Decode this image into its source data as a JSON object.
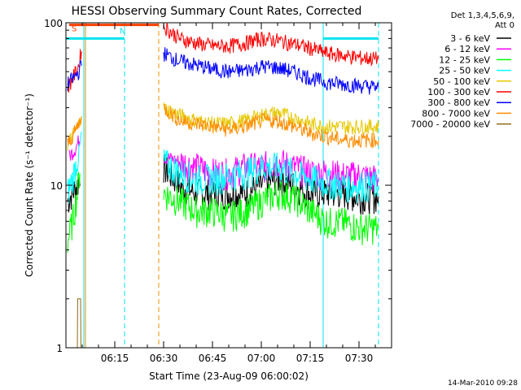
{
  "chart_data": {
    "type": "line",
    "title": "HESSI Observing Summary Count Rates, Corrected",
    "xlabel": "Start Time (23-Aug-09 06:00:02)",
    "ylabel": "Corrected Count Rate (s⁻¹ detector⁻¹)",
    "yscale": "log",
    "ylim": [
      1,
      100
    ],
    "xlim_minutes": [
      0,
      100
    ],
    "x_tick_labels": [
      "06:15",
      "06:30",
      "06:45",
      "07:00",
      "07:15",
      "07:30"
    ],
    "y_tick_labels": [
      "1",
      "10",
      "100"
    ],
    "legend_header": [
      "Det 1,3,4,5,6,9,",
      "Att 0"
    ],
    "legend_position": "right",
    "timestamp": "14-Mar-2010 09:28",
    "flags": [
      {
        "label": "S",
        "color": "#ff4000",
        "start": 1,
        "end": 28.5,
        "y": 97
      },
      {
        "label": "N",
        "color": "#00e5ee",
        "start": 0,
        "end": 18,
        "y": 80
      },
      {
        "label": "",
        "color": "#00e5ee",
        "start": 79,
        "end": 96,
        "y": 80
      }
    ],
    "vertical_lines": [
      {
        "x": 5.5,
        "color": "#00e5ee",
        "style": "solid"
      },
      {
        "x": 6.0,
        "color": "#ff8c00",
        "style": "solid"
      },
      {
        "x": 18,
        "color": "#00e5ee",
        "style": "dashed"
      },
      {
        "x": 28.5,
        "color": "#ff8c00",
        "style": "dashed"
      },
      {
        "x": 79,
        "color": "#00e5ee",
        "style": "solid"
      },
      {
        "x": 96,
        "color": "#00e5ee",
        "style": "dashed"
      }
    ],
    "series": [
      {
        "name": "3 - 6 keV",
        "color": "#000000",
        "x": [
          0.5,
          2,
          3.5,
          4.5,
          30,
          35,
          40,
          45,
          50,
          55,
          60,
          65,
          70,
          75,
          80,
          85,
          90,
          96
        ],
        "y": [
          8,
          9,
          10,
          12,
          13,
          10,
          9,
          9,
          9,
          9,
          10,
          11,
          10,
          9,
          9,
          9,
          8.5,
          8.5
        ]
      },
      {
        "name": "6 - 12 keV",
        "color": "#ff00ff",
        "x": [
          1,
          3,
          4.5,
          30,
          35,
          40,
          45,
          50,
          55,
          60,
          65,
          70,
          75,
          80,
          85,
          90,
          96
        ],
        "y": [
          15,
          17,
          20,
          15,
          14,
          13,
          12,
          12,
          13,
          13,
          14,
          13,
          12,
          12,
          11.5,
          11.5,
          11
        ]
      },
      {
        "name": "12 - 25 keV",
        "color": "#00ff00",
        "x": [
          0.5,
          2,
          3.5,
          4.5,
          30,
          35,
          40,
          45,
          50,
          55,
          60,
          65,
          70,
          75,
          80,
          85,
          90,
          96
        ],
        "y": [
          4.5,
          6,
          9,
          14,
          9,
          8,
          7,
          7,
          6.5,
          7,
          8,
          9,
          8.5,
          7,
          6,
          6,
          5.5,
          5.5
        ]
      },
      {
        "name": "25 - 50 keV",
        "color": "#00ffff",
        "x": [
          0.5,
          2,
          4,
          5,
          30,
          35,
          40,
          45,
          50,
          55,
          60,
          65,
          70,
          75,
          80,
          85,
          90,
          96
        ],
        "y": [
          9,
          11,
          16,
          22,
          14,
          12,
          11,
          11,
          11.5,
          12,
          13,
          13,
          12,
          11,
          10.5,
          10,
          10,
          10
        ]
      },
      {
        "name": "50 - 100 keV",
        "color": "#e6c800",
        "x": [
          0.5,
          2,
          4,
          5,
          30,
          35,
          40,
          45,
          50,
          55,
          60,
          65,
          70,
          75,
          80,
          85,
          90,
          96
        ],
        "y": [
          18,
          20,
          24,
          30,
          30,
          27,
          25,
          24,
          24,
          25,
          27,
          28,
          26,
          24,
          23,
          23,
          23,
          23
        ]
      },
      {
        "name": "100 - 300 keV",
        "color": "#ff0000",
        "x": [
          0.5,
          2,
          4,
          5,
          30,
          35,
          40,
          45,
          50,
          55,
          60,
          65,
          70,
          75,
          80,
          85,
          90,
          96
        ],
        "y": [
          40,
          45,
          55,
          75,
          95,
          80,
          75,
          72,
          72,
          75,
          80,
          78,
          74,
          70,
          65,
          63,
          61,
          60
        ]
      },
      {
        "name": "300 - 800 keV",
        "color": "#0000ff",
        "x": [
          0.5,
          2,
          4,
          5,
          30,
          35,
          40,
          45,
          50,
          55,
          60,
          65,
          70,
          75,
          80,
          85,
          90,
          96
        ],
        "y": [
          42,
          45,
          50,
          58,
          65,
          58,
          55,
          52,
          50,
          51,
          54,
          53,
          50,
          46,
          43,
          42,
          41,
          40
        ]
      },
      {
        "name": "800 - 7000 keV",
        "color": "#ff8c00",
        "x": [
          0.5,
          2,
          4,
          5,
          30,
          35,
          40,
          45,
          50,
          55,
          60,
          65,
          70,
          75,
          80,
          85,
          90,
          96
        ],
        "y": [
          18,
          20,
          24,
          28,
          30,
          25,
          24,
          23,
          22,
          23,
          25,
          25,
          23,
          21,
          20,
          19,
          19,
          19
        ]
      },
      {
        "name": "7000 - 20000 keV",
        "color": "#8b6914",
        "x": [
          3.5,
          3.6,
          4.5,
          4.6
        ],
        "y": [
          1,
          2,
          2,
          1
        ]
      }
    ]
  }
}
